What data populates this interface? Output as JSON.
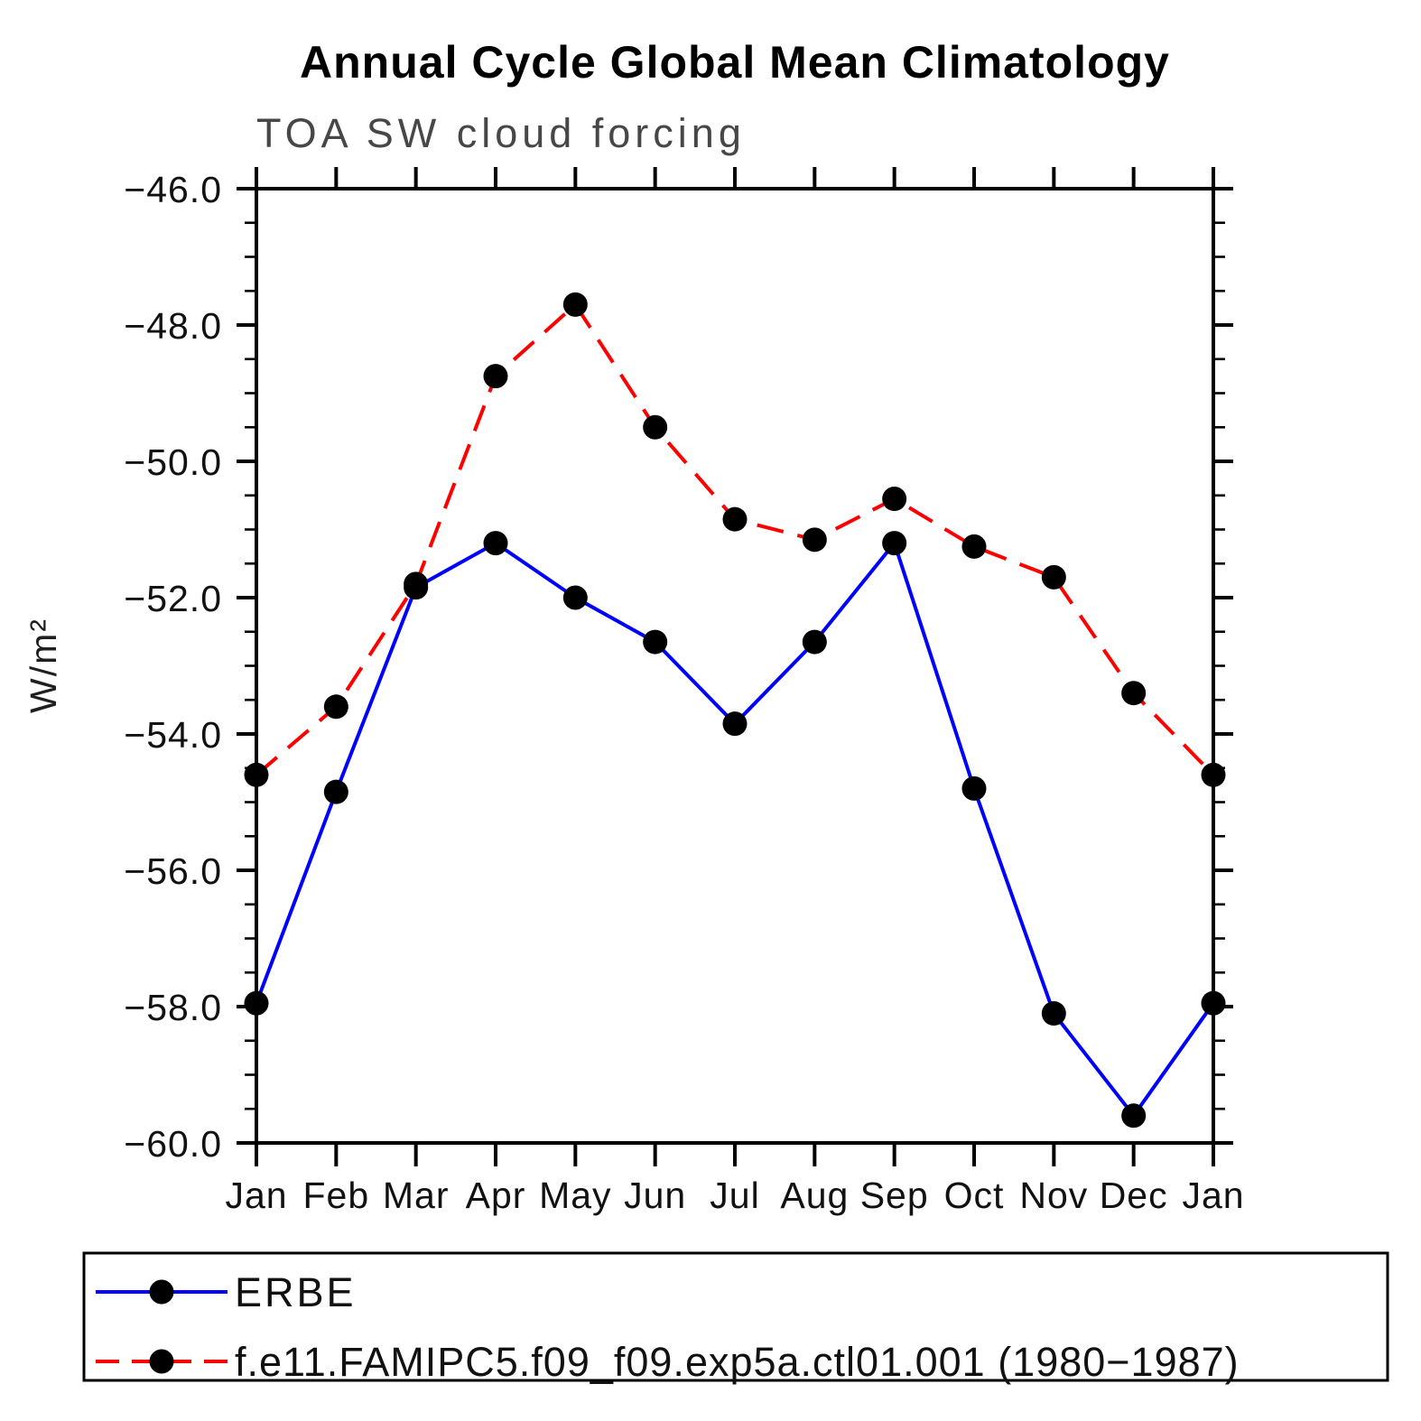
{
  "page": {
    "background_color": "#ffffff"
  },
  "chart_data": {
    "type": "line",
    "title": "Annual Cycle Global Mean Climatology",
    "subtitle": "TOA SW cloud forcing",
    "ylabel": "W/m²",
    "x_categories": [
      "Jan",
      "Feb",
      "Mar",
      "Apr",
      "May",
      "Jun",
      "Jul",
      "Aug",
      "Sep",
      "Oct",
      "Nov",
      "Dec",
      "Jan"
    ],
    "ylim": [
      -60.0,
      -46.0
    ],
    "y_major_step": 2.0,
    "y_minor_step": 0.5,
    "y_tick_labels": [
      "−46.0",
      "−48.0",
      "−50.0",
      "−52.0",
      "−54.0",
      "−56.0",
      "−58.0",
      "−60.0"
    ],
    "grid": false,
    "legend_position": "bottom-box",
    "axis_color": "#000000",
    "marker_color": "#000000",
    "series": [
      {
        "name": "ERBE",
        "color": "#0000ff",
        "line_style": "solid",
        "marker": "filled-circle",
        "values": [
          -57.95,
          -54.85,
          -51.85,
          -51.2,
          -52.0,
          -52.65,
          -53.85,
          -52.65,
          -51.2,
          -54.8,
          -58.1,
          -59.6,
          -57.95
        ]
      },
      {
        "name": "f.e11.FAMIPC5.f09_f09.exp5a.ctl01.001 (1980−1987)",
        "color": "#ff0000",
        "line_style": "dashed",
        "marker": "filled-circle",
        "values": [
          -54.6,
          -53.6,
          -51.8,
          -48.75,
          -47.7,
          -49.5,
          -50.85,
          -51.15,
          -50.55,
          -51.25,
          -51.7,
          -53.4,
          -54.6
        ]
      }
    ]
  }
}
